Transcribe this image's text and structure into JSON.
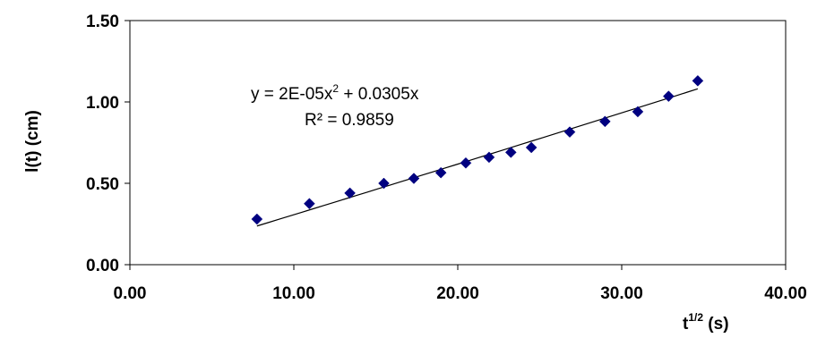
{
  "chart_data": {
    "type": "scatter",
    "title": "",
    "xlabel_base": "t",
    "xlabel_sup": "1/2",
    "xlabel_unit": " (s)",
    "ylabel": "l(t) (cm)",
    "xlim": [
      0,
      40
    ],
    "ylim": [
      0,
      1.5
    ],
    "x_ticks": [
      "0.00",
      "10.00",
      "20.00",
      "30.00",
      "40.00"
    ],
    "y_ticks": [
      "0.00",
      "0.50",
      "1.00",
      "1.50"
    ],
    "grid": false,
    "legend": "none",
    "series": [
      {
        "marker": "diamond",
        "color": "#000080",
        "points": [
          {
            "x": 7.75,
            "y": 0.28
          },
          {
            "x": 10.95,
            "y": 0.375
          },
          {
            "x": 13.42,
            "y": 0.44
          },
          {
            "x": 15.49,
            "y": 0.5
          },
          {
            "x": 17.32,
            "y": 0.53
          },
          {
            "x": 18.97,
            "y": 0.565
          },
          {
            "x": 20.49,
            "y": 0.625
          },
          {
            "x": 21.91,
            "y": 0.66
          },
          {
            "x": 23.24,
            "y": 0.69
          },
          {
            "x": 24.49,
            "y": 0.72
          },
          {
            "x": 26.83,
            "y": 0.815
          },
          {
            "x": 28.98,
            "y": 0.88
          },
          {
            "x": 30.98,
            "y": 0.94
          },
          {
            "x": 32.86,
            "y": 1.035
          },
          {
            "x": 34.64,
            "y": 1.13
          }
        ]
      }
    ],
    "trendline": {
      "type": "polynomial",
      "a": 2e-05,
      "b": 0.0305,
      "x_range": [
        7.75,
        34.64
      ],
      "color": "#000000"
    },
    "annotation": {
      "line1_prefix": "y = 2E-05x",
      "line1_sup": "2",
      "line1_suffix": " + 0.0305x",
      "line2": "R² = 0.9859"
    }
  }
}
